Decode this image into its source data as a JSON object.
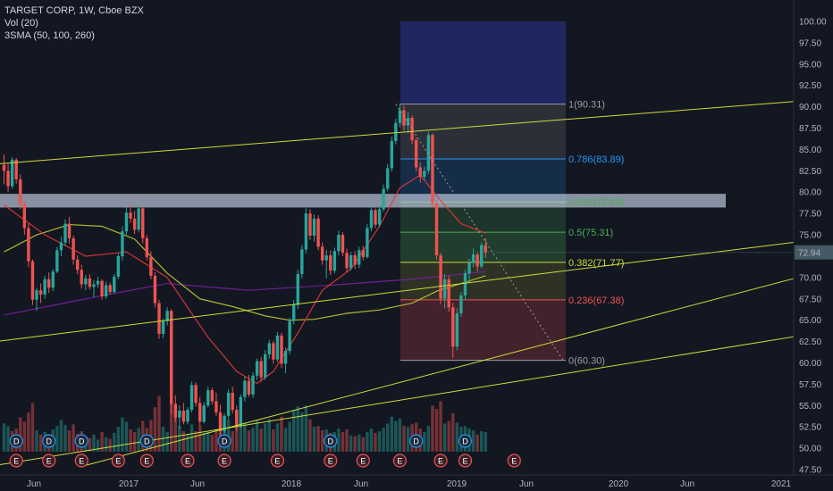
{
  "header": {
    "symbol": "TARGET CORP, 1W, Cboe BZX",
    "vol": "Vol (20)",
    "sma": "3SMA (50, 100, 260)"
  },
  "price_label": "72.94",
  "colors": {
    "background": "#131722",
    "up": "#26a69a",
    "down": "#ef5350",
    "trendline": "#cddc39",
    "sma50": "#e53935",
    "sma100": "#c0ca33",
    "sma260": "#7b1fa2",
    "price_tag": "#455a64"
  },
  "chart_data": {
    "type": "candlestick",
    "title": "TARGET CORP, 1W, Cboe BZX",
    "x_ticks": [
      "Jun",
      "2017",
      "Jun",
      "2018",
      "Jun",
      "2019",
      "Jun",
      "2020",
      "Jun",
      "2021"
    ],
    "y_ticks": [
      "100.00",
      "97.50",
      "95.00",
      "92.50",
      "90.00",
      "87.50",
      "85.00",
      "82.50",
      "80.00",
      "77.50",
      "75.00",
      "72.50",
      "70.00",
      "67.50",
      "65.00",
      "62.50",
      "60.00",
      "57.50",
      "55.00",
      "52.50",
      "50.00",
      "47.50"
    ],
    "ylim": [
      47.5,
      100
    ],
    "last_price": 72.94,
    "fibonacci": [
      {
        "ratio": "1",
        "price": 90.31,
        "label": "1(90.31)",
        "color": "#9e9e9e"
      },
      {
        "ratio": "0.786",
        "price": 83.89,
        "label": "0.786(83.89)",
        "color": "#2196f3"
      },
      {
        "ratio": "0.618",
        "price": 78.85,
        "label": "0.618(78.85)",
        "color": "#4caf50"
      },
      {
        "ratio": "0.5",
        "price": 75.31,
        "label": "0.5(75.31)",
        "color": "#4caf50"
      },
      {
        "ratio": "0.382",
        "price": 71.77,
        "label": "0.382(71.77)",
        "color": "#cddc39"
      },
      {
        "ratio": "0.236",
        "price": 67.38,
        "label": "0.236(67.38)",
        "color": "#ef5350"
      },
      {
        "ratio": "0",
        "price": 60.3,
        "label": "0(60.30)",
        "color": "#9e9e9e"
      }
    ],
    "fib_extension_top": 100.0,
    "resistance_zone": [
      78.2,
      79.8
    ],
    "candles": [
      [
        83.2,
        84.4,
        80.9,
        82.5
      ],
      [
        82.5,
        83.3,
        80.0,
        80.7
      ],
      [
        80.7,
        84.1,
        80.4,
        83.8
      ],
      [
        83.8,
        84.0,
        81.0,
        81.5
      ],
      [
        81.5,
        82.1,
        78.0,
        78.6
      ],
      [
        78.6,
        78.9,
        75.0,
        75.8
      ],
      [
        75.8,
        76.3,
        71.2,
        71.9
      ],
      [
        71.9,
        72.1,
        66.8,
        67.4
      ],
      [
        67.4,
        68.8,
        66.1,
        68.5
      ],
      [
        68.5,
        69.3,
        67.0,
        68.0
      ],
      [
        68.0,
        70.2,
        67.5,
        69.8
      ],
      [
        69.8,
        70.6,
        68.2,
        68.8
      ],
      [
        68.8,
        71.0,
        68.4,
        70.7
      ],
      [
        70.7,
        73.6,
        70.5,
        73.2
      ],
      [
        73.2,
        74.8,
        72.5,
        74.1
      ],
      [
        74.1,
        76.8,
        73.7,
        76.3
      ],
      [
        76.3,
        77.1,
        74.0,
        74.6
      ],
      [
        74.6,
        74.9,
        71.5,
        72.1
      ],
      [
        72.1,
        72.6,
        70.4,
        70.9
      ],
      [
        70.9,
        71.5,
        68.7,
        69.2
      ],
      [
        69.2,
        70.3,
        68.5,
        69.9
      ],
      [
        69.9,
        70.4,
        68.6,
        68.9
      ],
      [
        68.9,
        69.7,
        67.7,
        69.2
      ],
      [
        69.2,
        70.1,
        68.8,
        69.6
      ],
      [
        69.6,
        69.8,
        67.4,
        67.8
      ],
      [
        67.8,
        69.5,
        67.5,
        69.1
      ],
      [
        69.1,
        69.4,
        68.0,
        68.3
      ],
      [
        68.3,
        70.4,
        68.1,
        70.1
      ],
      [
        70.1,
        72.8,
        69.8,
        72.5
      ],
      [
        72.5,
        76.0,
        72.0,
        75.4
      ],
      [
        75.4,
        78.2,
        75.0,
        77.6
      ],
      [
        77.6,
        78.6,
        76.4,
        76.9
      ],
      [
        76.9,
        77.8,
        75.1,
        75.6
      ],
      [
        75.6,
        78.5,
        75.3,
        78.1
      ],
      [
        78.1,
        78.3,
        74.0,
        74.6
      ],
      [
        74.6,
        75.0,
        72.0,
        72.4
      ],
      [
        72.4,
        73.1,
        69.8,
        70.2
      ],
      [
        70.2,
        70.6,
        66.5,
        67.0
      ],
      [
        67.0,
        67.4,
        62.8,
        63.4
      ],
      [
        63.4,
        65.2,
        62.9,
        64.9
      ],
      [
        64.9,
        66.5,
        64.4,
        66.1
      ],
      [
        66.1,
        66.3,
        54.0,
        55.2
      ],
      [
        55.2,
        56.2,
        53.1,
        53.6
      ],
      [
        53.6,
        55.0,
        52.3,
        54.4
      ],
      [
        54.4,
        55.3,
        52.8,
        53.1
      ],
      [
        53.1,
        54.8,
        52.8,
        54.5
      ],
      [
        54.5,
        57.8,
        54.2,
        57.4
      ],
      [
        57.4,
        57.7,
        54.9,
        55.3
      ],
      [
        55.3,
        56.0,
        52.7,
        53.1
      ],
      [
        53.1,
        55.4,
        52.9,
        55.0
      ],
      [
        55.0,
        57.2,
        54.8,
        56.8
      ],
      [
        56.8,
        57.1,
        55.1,
        55.5
      ],
      [
        55.5,
        56.5,
        53.8,
        54.2
      ],
      [
        54.2,
        55.1,
        51.5,
        52.0
      ],
      [
        52.0,
        54.1,
        51.7,
        53.8
      ],
      [
        53.8,
        56.9,
        53.5,
        56.5
      ],
      [
        56.5,
        57.2,
        54.1,
        54.5
      ],
      [
        54.5,
        55.0,
        52.0,
        52.6
      ],
      [
        52.6,
        56.3,
        52.4,
        56.0
      ],
      [
        56.0,
        58.4,
        55.5,
        57.9
      ],
      [
        57.9,
        58.6,
        56.0,
        56.3
      ],
      [
        56.3,
        58.9,
        55.9,
        58.5
      ],
      [
        58.5,
        60.5,
        58.0,
        60.2
      ],
      [
        60.2,
        60.7,
        57.8,
        58.3
      ],
      [
        58.3,
        61.5,
        58.0,
        61.0
      ],
      [
        61.0,
        62.7,
        60.5,
        62.3
      ],
      [
        62.3,
        62.6,
        59.9,
        60.4
      ],
      [
        60.4,
        63.6,
        60.1,
        63.2
      ],
      [
        63.2,
        63.5,
        59.4,
        59.9
      ],
      [
        59.9,
        61.8,
        58.8,
        61.4
      ],
      [
        61.4,
        65.3,
        61.0,
        64.9
      ],
      [
        64.9,
        67.4,
        64.5,
        66.8
      ],
      [
        66.8,
        70.9,
        66.3,
        70.4
      ],
      [
        70.4,
        73.8,
        69.9,
        73.3
      ],
      [
        73.3,
        78.1,
        72.8,
        77.5
      ],
      [
        77.5,
        78.0,
        74.4,
        74.9
      ],
      [
        74.9,
        77.4,
        74.2,
        76.9
      ],
      [
        76.9,
        77.3,
        73.2,
        73.6
      ],
      [
        73.6,
        74.1,
        71.5,
        72.0
      ],
      [
        72.0,
        73.2,
        69.9,
        72.6
      ],
      [
        72.6,
        73.2,
        70.3,
        70.8
      ],
      [
        70.8,
        73.5,
        70.5,
        73.1
      ],
      [
        73.1,
        75.5,
        72.6,
        75.0
      ],
      [
        75.0,
        75.3,
        72.5,
        72.9
      ],
      [
        72.9,
        73.4,
        70.6,
        71.1
      ],
      [
        71.1,
        73.0,
        70.8,
        72.6
      ],
      [
        72.6,
        73.1,
        71.0,
        71.5
      ],
      [
        71.5,
        73.6,
        71.1,
        73.2
      ],
      [
        73.2,
        73.7,
        72.0,
        72.4
      ],
      [
        72.4,
        76.3,
        72.2,
        75.8
      ],
      [
        75.8,
        78.3,
        75.4,
        77.9
      ],
      [
        77.9,
        78.1,
        75.8,
        76.2
      ],
      [
        76.2,
        78.4,
        75.9,
        78.0
      ],
      [
        78.0,
        80.9,
        77.7,
        80.4
      ],
      [
        80.4,
        83.3,
        80.1,
        82.8
      ],
      [
        82.8,
        86.5,
        82.4,
        86.0
      ],
      [
        86.0,
        88.6,
        85.6,
        88.1
      ],
      [
        88.1,
        90.4,
        87.6,
        89.6
      ],
      [
        89.6,
        90.1,
        87.2,
        87.8
      ],
      [
        87.8,
        89.4,
        86.9,
        88.7
      ],
      [
        88.7,
        89.0,
        85.6,
        86.1
      ],
      [
        86.1,
        86.4,
        82.4,
        82.9
      ],
      [
        82.9,
        83.5,
        81.1,
        81.8
      ],
      [
        81.8,
        83.0,
        81.4,
        82.5
      ],
      [
        82.5,
        87.1,
        82.1,
        86.7
      ],
      [
        86.7,
        86.9,
        78.2,
        78.7
      ],
      [
        78.7,
        79.0,
        72.1,
        72.6
      ],
      [
        72.6,
        72.9,
        66.9,
        67.5
      ],
      [
        67.5,
        70.4,
        66.4,
        69.8
      ],
      [
        69.8,
        70.2,
        66.0,
        66.5
      ],
      [
        66.5,
        67.0,
        60.6,
        61.9
      ],
      [
        61.9,
        66.4,
        61.5,
        65.8
      ],
      [
        65.8,
        68.3,
        65.4,
        67.9
      ],
      [
        67.9,
        70.9,
        67.4,
        70.5
      ],
      [
        70.5,
        72.2,
        69.4,
        71.7
      ],
      [
        71.7,
        73.4,
        71.2,
        72.7
      ],
      [
        72.7,
        73.0,
        70.7,
        71.3
      ],
      [
        71.3,
        74.1,
        71.1,
        73.8
      ],
      [
        73.8,
        74.6,
        72.3,
        72.9
      ]
    ],
    "volume": [
      [
        52.9,
        1
      ],
      [
        52.6,
        1
      ],
      [
        52.0,
        0
      ],
      [
        52.3,
        0
      ],
      [
        53.6,
        0
      ],
      [
        53.1,
        0
      ],
      [
        54.2,
        0
      ],
      [
        55.3,
        0
      ],
      [
        52.1,
        1
      ],
      [
        51.6,
        0
      ],
      [
        51.9,
        1
      ],
      [
        51.5,
        0
      ],
      [
        52.2,
        1
      ],
      [
        52.6,
        1
      ],
      [
        53.3,
        1
      ],
      [
        52.7,
        1
      ],
      [
        52.1,
        0
      ],
      [
        52.8,
        0
      ],
      [
        51.7,
        0
      ],
      [
        52.0,
        0
      ],
      [
        51.4,
        1
      ],
      [
        51.2,
        0
      ],
      [
        51.6,
        1
      ],
      [
        51.0,
        1
      ],
      [
        51.9,
        0
      ],
      [
        51.3,
        1
      ],
      [
        51.1,
        0
      ],
      [
        51.8,
        1
      ],
      [
        52.5,
        1
      ],
      [
        53.6,
        1
      ],
      [
        53.1,
        1
      ],
      [
        52.2,
        0
      ],
      [
        51.9,
        0
      ],
      [
        52.4,
        1
      ],
      [
        53.2,
        0
      ],
      [
        52.4,
        0
      ],
      [
        53.3,
        0
      ],
      [
        54.8,
        0
      ],
      [
        56.1,
        0
      ],
      [
        52.5,
        1
      ],
      [
        51.9,
        1
      ],
      [
        57.4,
        0
      ],
      [
        55.2,
        0
      ],
      [
        52.6,
        1
      ],
      [
        52.0,
        0
      ],
      [
        51.6,
        1
      ],
      [
        52.8,
        1
      ],
      [
        52.0,
        0
      ],
      [
        52.7,
        0
      ],
      [
        51.8,
        1
      ],
      [
        51.9,
        1
      ],
      [
        51.6,
        0
      ],
      [
        52.2,
        0
      ],
      [
        53.3,
        0
      ],
      [
        52.6,
        1
      ],
      [
        53.4,
        1
      ],
      [
        52.0,
        0
      ],
      [
        52.6,
        0
      ],
      [
        53.2,
        1
      ],
      [
        53.0,
        1
      ],
      [
        52.1,
        0
      ],
      [
        52.4,
        1
      ],
      [
        53.3,
        1
      ],
      [
        52.3,
        0
      ],
      [
        52.9,
        1
      ],
      [
        53.4,
        1
      ],
      [
        52.2,
        0
      ],
      [
        52.9,
        1
      ],
      [
        53.7,
        0
      ],
      [
        52.4,
        1
      ],
      [
        53.1,
        1
      ],
      [
        54.5,
        1
      ],
      [
        54.9,
        1
      ],
      [
        54.2,
        1
      ],
      [
        55.0,
        1
      ],
      [
        53.4,
        0
      ],
      [
        52.5,
        1
      ],
      [
        52.6,
        0
      ],
      [
        52.1,
        0
      ],
      [
        52.2,
        1
      ],
      [
        51.8,
        0
      ],
      [
        51.9,
        1
      ],
      [
        52.3,
        1
      ],
      [
        51.9,
        0
      ],
      [
        52.2,
        0
      ],
      [
        51.5,
        1
      ],
      [
        51.4,
        0
      ],
      [
        51.6,
        1
      ],
      [
        51.3,
        0
      ],
      [
        51.9,
        1
      ],
      [
        52.3,
        1
      ],
      [
        51.8,
        0
      ],
      [
        52.0,
        1
      ],
      [
        52.4,
        1
      ],
      [
        52.9,
        1
      ],
      [
        53.7,
        1
      ],
      [
        53.2,
        1
      ],
      [
        53.5,
        1
      ],
      [
        52.6,
        0
      ],
      [
        52.5,
        1
      ],
      [
        52.8,
        0
      ],
      [
        53.0,
        0
      ],
      [
        52.3,
        0
      ],
      [
        51.9,
        1
      ],
      [
        52.6,
        1
      ],
      [
        55.0,
        0
      ],
      [
        54.6,
        0
      ],
      [
        55.5,
        0
      ],
      [
        52.9,
        1
      ],
      [
        53.2,
        0
      ],
      [
        54.1,
        0
      ],
      [
        53.0,
        1
      ],
      [
        52.5,
        1
      ],
      [
        52.6,
        1
      ],
      [
        52.3,
        1
      ],
      [
        52.1,
        1
      ],
      [
        51.6,
        0
      ],
      [
        52.0,
        1
      ],
      [
        51.9,
        1
      ]
    ],
    "events_d": [
      3,
      11,
      19,
      35,
      54,
      80,
      101,
      113
    ],
    "events_e": [
      3,
      11,
      19,
      28,
      35,
      45,
      54,
      67,
      80,
      88,
      97,
      107,
      113,
      125
    ],
    "sma50": [
      [
        0,
        78.5
      ],
      [
        10,
        75.0
      ],
      [
        20,
        72.5
      ],
      [
        30,
        73.0
      ],
      [
        40,
        70.0
      ],
      [
        50,
        63.0
      ],
      [
        57,
        59.0
      ],
      [
        62,
        57.6
      ],
      [
        66,
        59.0
      ],
      [
        72,
        63.5
      ],
      [
        78,
        68.5
      ],
      [
        85,
        71.0
      ],
      [
        92,
        76.0
      ],
      [
        97,
        80.5
      ],
      [
        102,
        82.0
      ],
      [
        107,
        79.0
      ],
      [
        112,
        76.3
      ],
      [
        118,
        75.2
      ]
    ],
    "sma100": [
      [
        0,
        73.0
      ],
      [
        8,
        75.0
      ],
      [
        16,
        76.2
      ],
      [
        24,
        76.0
      ],
      [
        32,
        74.5
      ],
      [
        40,
        70.5
      ],
      [
        48,
        67.5
      ],
      [
        56,
        66.6
      ],
      [
        64,
        65.5
      ],
      [
        70,
        65.0
      ],
      [
        76,
        65.1
      ],
      [
        84,
        65.8
      ],
      [
        92,
        66.2
      ],
      [
        100,
        67.0
      ],
      [
        106,
        68.4
      ],
      [
        112,
        69.3
      ],
      [
        118,
        70.2
      ]
    ],
    "sma260": [
      [
        0,
        65.6
      ],
      [
        20,
        67.5
      ],
      [
        40,
        69.3
      ],
      [
        60,
        68.5
      ],
      [
        80,
        69.1
      ],
      [
        100,
        69.8
      ],
      [
        118,
        70.7
      ]
    ],
    "trendlines": [
      {
        "from": [
          -2,
          83.3
        ],
        "to": [
          220,
          91.6
        ]
      },
      {
        "from": [
          -2,
          62.5
        ],
        "to": [
          200,
          74.5
        ]
      },
      {
        "from": [
          20,
          48.0
        ],
        "to": [
          200,
          70.7
        ]
      },
      {
        "from": [
          -2,
          48.0
        ],
        "to": [
          220,
          65.1
        ]
      }
    ],
    "dotted_line": {
      "from": [
        96,
        90.3
      ],
      "to": [
        137,
        60.3
      ]
    }
  }
}
